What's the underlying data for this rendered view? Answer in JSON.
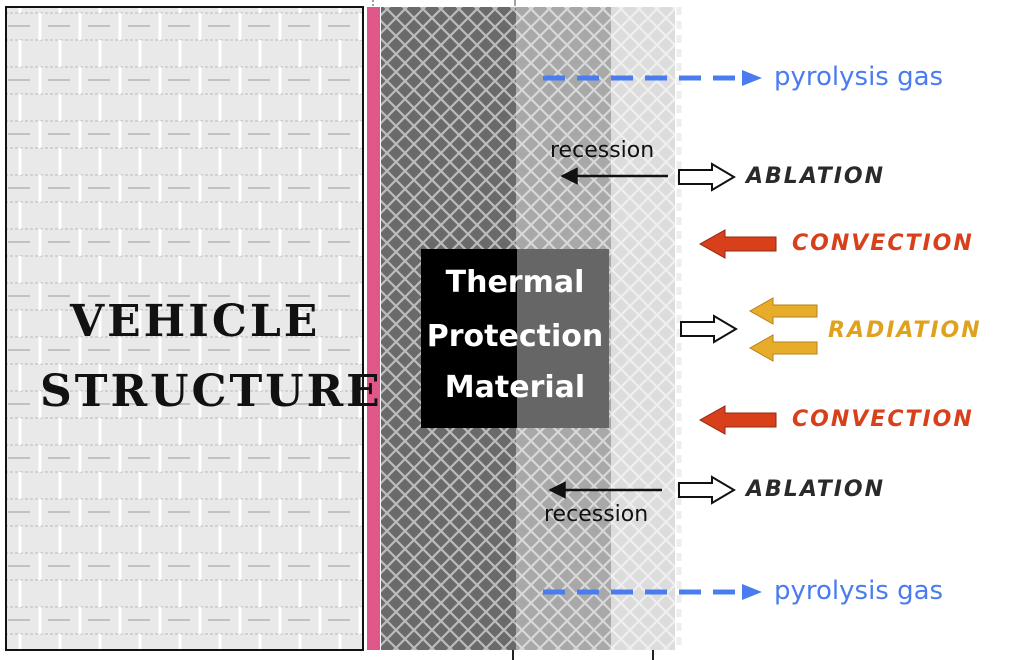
{
  "vehicle_structure": {
    "line1": "VEHICLE",
    "line2": "STRUCTURE"
  },
  "tpm": {
    "line1": "Thermal",
    "line2": "Protection",
    "line3": "Material"
  },
  "flows": {
    "pyrolysis_top": "pyrolysis gas",
    "pyrolysis_bottom": "pyrolysis gas",
    "recession_top": "recession",
    "recession_bottom": "recession",
    "ablation_top": "ABLATION",
    "ablation_bottom": "ABLATION",
    "convection_top": "CONVECTION",
    "convection_bottom": "CONVECTION",
    "radiation": "RADIATION"
  },
  "colors": {
    "pyrolysis_gas": "#4a7cf0",
    "convection": "#d8401c",
    "radiation": "#e0a21e",
    "bondline": "#e0588a",
    "structure_fill": "#e9e9e9",
    "layer_virgin": "#6a6a6a",
    "layer_pyrolysis": "#a8a8a8",
    "layer_char": "#dcdcdc"
  }
}
